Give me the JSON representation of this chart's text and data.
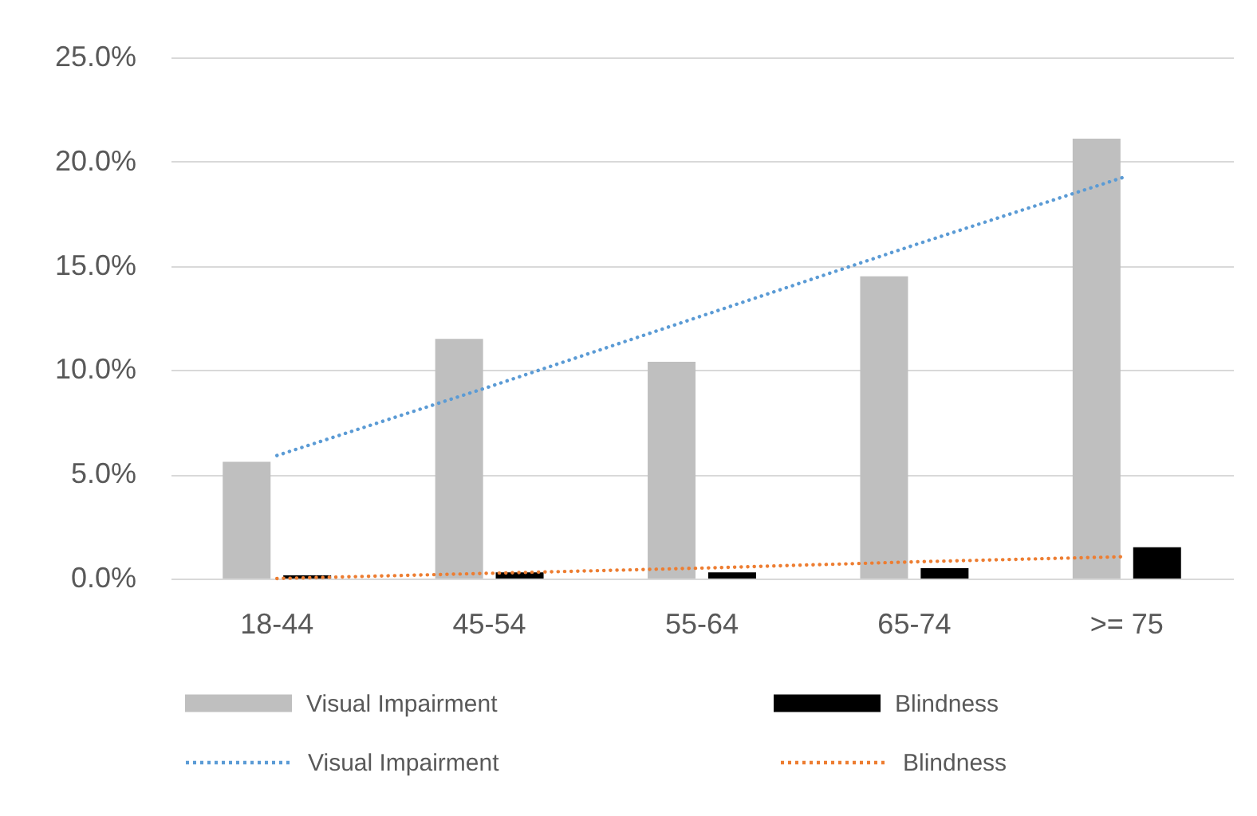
{
  "chart_data": {
    "type": "bar",
    "categories": [
      "18-44",
      "45-54",
      "55-64",
      "65-74",
      ">= 75"
    ],
    "series": [
      {
        "name": "Visual Impairment",
        "color": "#bfbfbf",
        "values": [
          5.6,
          11.5,
          10.4,
          14.5,
          21.1
        ]
      },
      {
        "name": "Blindness",
        "color": "#000000",
        "values": [
          0.15,
          0.3,
          0.3,
          0.5,
          1.5
        ]
      },
      {
        "name": "Visual Impairment",
        "type": "line",
        "color": "#5b9bd5",
        "values": [
          5.9,
          9.2,
          12.6,
          16.0,
          19.3
        ]
      },
      {
        "name": "Blindness",
        "type": "line",
        "color": "#ed7d31",
        "values": [
          0.0,
          0.25,
          0.5,
          0.8,
          1.05
        ]
      }
    ],
    "ylim": [
      0,
      25
    ],
    "yticks": [
      {
        "value": 0,
        "label": "0.0%"
      },
      {
        "value": 5,
        "label": "5.0%"
      },
      {
        "value": 10,
        "label": "10.0%"
      },
      {
        "value": 15,
        "label": "15.0%"
      },
      {
        "value": 20,
        "label": "20.0%"
      },
      {
        "value": 25,
        "label": "25.0%"
      }
    ],
    "grid": "y",
    "legend": "bottom",
    "line_style": "dotted"
  }
}
